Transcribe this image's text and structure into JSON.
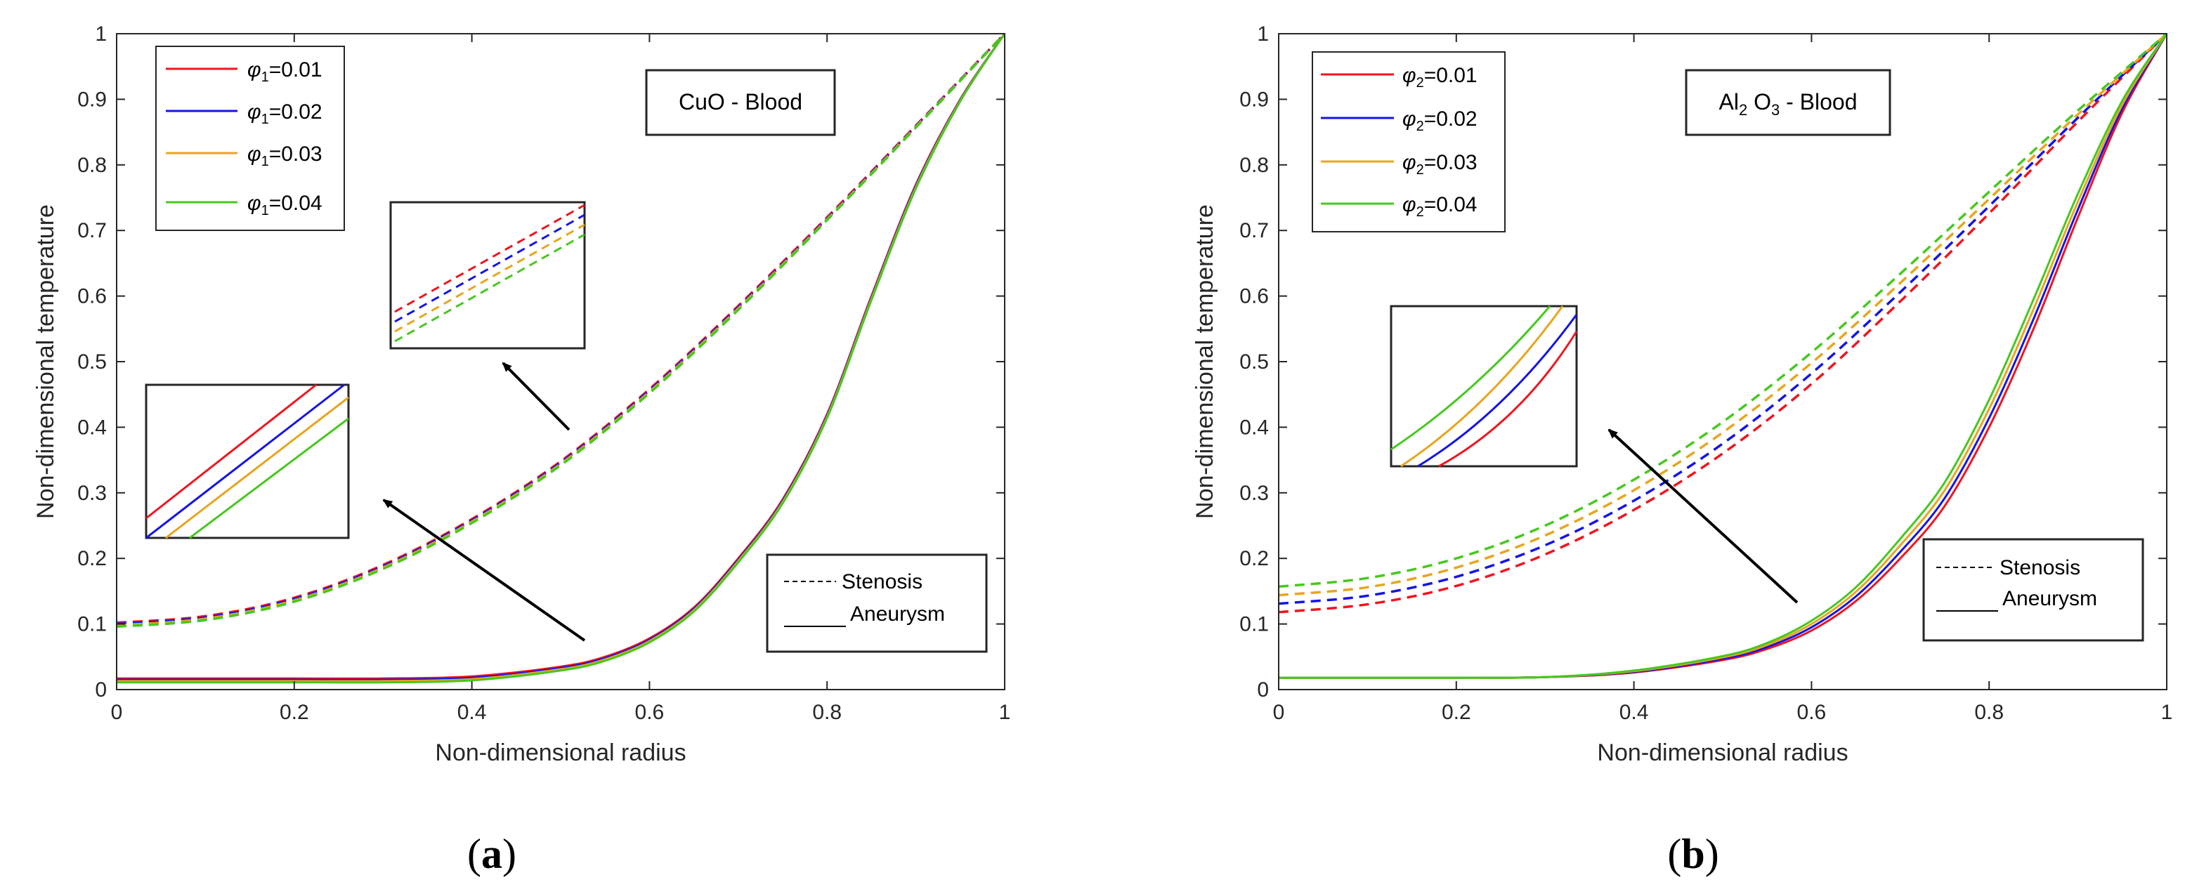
{
  "colors": {
    "red": "#f0141e",
    "blue": "#1414e6",
    "orange": "#e8a51e",
    "green": "#46c81e",
    "axis": "#262626",
    "arrow": "#000000"
  },
  "chart_data": [
    {
      "type": "line",
      "caption": "(a)",
      "caption_letter": "a",
      "title": "CuO - Blood",
      "xlabel": "Non-dimensional radius",
      "ylabel": "Non-dimensional temperature",
      "xlim": [
        0,
        1
      ],
      "ylim": [
        0,
        1
      ],
      "xticks": [
        0,
        0.2,
        0.4,
        0.6,
        0.8,
        1
      ],
      "xtick_labels": [
        "0",
        "0.2",
        "0.4",
        "0.6",
        "0.8",
        "1"
      ],
      "yticks": [
        0,
        0.1,
        0.2,
        0.3,
        0.4,
        0.5,
        0.6,
        0.7,
        0.8,
        0.9,
        1
      ],
      "ytick_labels": [
        "0",
        "0.1",
        "0.2",
        "0.3",
        "0.4",
        "0.5",
        "0.6",
        "0.7",
        "0.8",
        "0.9",
        "1"
      ],
      "legend": {
        "placement": "top-left",
        "symbol": "φ",
        "subscript": "1",
        "entries": [
          {
            "value": "=0.01",
            "color_key": "red"
          },
          {
            "value": "=0.02",
            "color_key": "blue"
          },
          {
            "value": "=0.03",
            "color_key": "orange"
          },
          {
            "value": "=0.04",
            "color_key": "green"
          }
        ]
      },
      "style_legend": {
        "placement": "bottom-right",
        "dashed_label": "Stenosis",
        "solid_label": "Aneurysm"
      },
      "stenosis": {
        "x": [
          0,
          0.1,
          0.2,
          0.3,
          0.4,
          0.5,
          0.6,
          0.7,
          0.8,
          0.9,
          1.0
        ],
        "series": [
          {
            "name": "φ1=0.01",
            "color_key": "red",
            "values": [
              0.102,
              0.112,
              0.14,
              0.19,
              0.26,
              0.348,
              0.458,
              0.585,
              0.72,
              0.86,
              1.0
            ]
          },
          {
            "name": "φ1=0.02",
            "color_key": "blue",
            "values": [
              0.1,
              0.11,
              0.138,
              0.188,
              0.258,
              0.346,
              0.456,
              0.583,
              0.718,
              0.859,
              1.0
            ]
          },
          {
            "name": "φ1=0.03",
            "color_key": "orange",
            "values": [
              0.098,
              0.108,
              0.136,
              0.186,
              0.256,
              0.344,
              0.454,
              0.581,
              0.717,
              0.858,
              1.0
            ]
          },
          {
            "name": "φ1=0.04",
            "color_key": "green",
            "values": [
              0.096,
              0.106,
              0.134,
              0.184,
              0.254,
              0.342,
              0.452,
              0.579,
              0.716,
              0.857,
              1.0
            ]
          }
        ]
      },
      "aneurysm": {
        "x": [
          0,
          0.1,
          0.2,
          0.3,
          0.4,
          0.5,
          0.55,
          0.6,
          0.65,
          0.7,
          0.75,
          0.8,
          0.85,
          0.9,
          0.95,
          1.0
        ],
        "series": [
          {
            "name": "φ1=0.01",
            "color_key": "red",
            "values": [
              0.017,
              0.017,
              0.017,
              0.017,
              0.02,
              0.035,
              0.05,
              0.078,
              0.125,
              0.2,
              0.29,
              0.42,
              0.6,
              0.77,
              0.9,
              1.0
            ]
          },
          {
            "name": "φ1=0.02",
            "color_key": "blue",
            "values": [
              0.015,
              0.015,
              0.015,
              0.015,
              0.018,
              0.033,
              0.048,
              0.076,
              0.123,
              0.198,
              0.288,
              0.418,
              0.598,
              0.768,
              0.899,
              1.0
            ]
          },
          {
            "name": "φ1=0.03",
            "color_key": "orange",
            "values": [
              0.013,
              0.013,
              0.013,
              0.013,
              0.016,
              0.031,
              0.046,
              0.074,
              0.121,
              0.196,
              0.286,
              0.416,
              0.596,
              0.766,
              0.898,
              1.0
            ]
          },
          {
            "name": "φ1=0.04",
            "color_key": "green",
            "values": [
              0.011,
              0.011,
              0.011,
              0.011,
              0.014,
              0.029,
              0.044,
              0.072,
              0.119,
              0.194,
              0.284,
              0.414,
              0.594,
              0.764,
              0.897,
              1.0
            ]
          }
        ]
      }
    },
    {
      "type": "line",
      "caption": "(b)",
      "caption_letter": "b",
      "title_parts": [
        "Al",
        "2",
        " O",
        "3",
        " - Blood"
      ],
      "xlabel": "Non-dimensional radius",
      "ylabel": "Non-dimensional temperature",
      "xlim": [
        0,
        1
      ],
      "ylim": [
        0,
        1
      ],
      "xticks": [
        0,
        0.2,
        0.4,
        0.6,
        0.8,
        1
      ],
      "xtick_labels": [
        "0",
        "0.2",
        "0.4",
        "0.6",
        "0.8",
        "1"
      ],
      "yticks": [
        0,
        0.1,
        0.2,
        0.3,
        0.4,
        0.5,
        0.6,
        0.7,
        0.8,
        0.9,
        1
      ],
      "ytick_labels": [
        "0",
        "0.1",
        "0.2",
        "0.3",
        "0.4",
        "0.5",
        "0.6",
        "0.7",
        "0.8",
        "0.9",
        "1"
      ],
      "legend": {
        "placement": "top-left",
        "symbol": "φ",
        "subscript": "2",
        "entries": [
          {
            "value": "=0.01",
            "color_key": "red"
          },
          {
            "value": "=0.02",
            "color_key": "blue"
          },
          {
            "value": "=0.03",
            "color_key": "orange"
          },
          {
            "value": "=0.04",
            "color_key": "green"
          }
        ]
      },
      "style_legend": {
        "placement": "bottom-right",
        "dashed_label": "Stenosis",
        "solid_label": "Aneurysm"
      },
      "stenosis": {
        "x": [
          0,
          0.1,
          0.2,
          0.3,
          0.4,
          0.5,
          0.6,
          0.7,
          0.8,
          0.9,
          1.0
        ],
        "series": [
          {
            "name": "φ2=0.01",
            "color_key": "red",
            "values": [
              0.118,
              0.13,
              0.158,
              0.206,
              0.274,
              0.36,
              0.466,
              0.592,
              0.726,
              0.866,
              1.0
            ]
          },
          {
            "name": "φ2=0.02",
            "color_key": "blue",
            "values": [
              0.131,
              0.143,
              0.172,
              0.22,
              0.288,
              0.375,
              0.482,
              0.606,
              0.737,
              0.872,
              1.0
            ]
          },
          {
            "name": "φ2=0.03",
            "color_key": "orange",
            "values": [
              0.144,
              0.156,
              0.186,
              0.235,
              0.304,
              0.392,
              0.498,
              0.62,
              0.748,
              0.877,
              1.0
            ]
          },
          {
            "name": "φ2=0.04",
            "color_key": "green",
            "values": [
              0.157,
              0.17,
              0.2,
              0.25,
              0.32,
              0.408,
              0.514,
              0.634,
              0.759,
              0.883,
              1.0
            ]
          }
        ]
      },
      "aneurysm": {
        "x": [
          0,
          0.1,
          0.2,
          0.3,
          0.4,
          0.5,
          0.55,
          0.6,
          0.65,
          0.7,
          0.75,
          0.8,
          0.85,
          0.9,
          0.95,
          1.0
        ],
        "series": [
          {
            "name": "φ2=0.01",
            "color_key": "red",
            "values": [
              0.018,
              0.018,
              0.018,
              0.019,
              0.026,
              0.045,
              0.062,
              0.09,
              0.135,
              0.2,
              0.28,
              0.4,
              0.55,
              0.72,
              0.88,
              1.0
            ]
          },
          {
            "name": "φ2=0.02",
            "color_key": "blue",
            "values": [
              0.018,
              0.018,
              0.018,
              0.019,
              0.027,
              0.047,
              0.065,
              0.095,
              0.142,
              0.21,
              0.292,
              0.414,
              0.565,
              0.732,
              0.886,
              1.0
            ]
          },
          {
            "name": "φ2=0.03",
            "color_key": "orange",
            "values": [
              0.018,
              0.018,
              0.018,
              0.019,
              0.028,
              0.049,
              0.068,
              0.1,
              0.149,
              0.22,
              0.304,
              0.428,
              0.58,
              0.744,
              0.892,
              1.0
            ]
          },
          {
            "name": "φ2=0.04",
            "color_key": "green",
            "values": [
              0.018,
              0.018,
              0.018,
              0.019,
              0.029,
              0.051,
              0.071,
              0.105,
              0.156,
              0.23,
              0.316,
              0.442,
              0.595,
              0.756,
              0.898,
              1.0
            ]
          }
        ]
      }
    }
  ]
}
